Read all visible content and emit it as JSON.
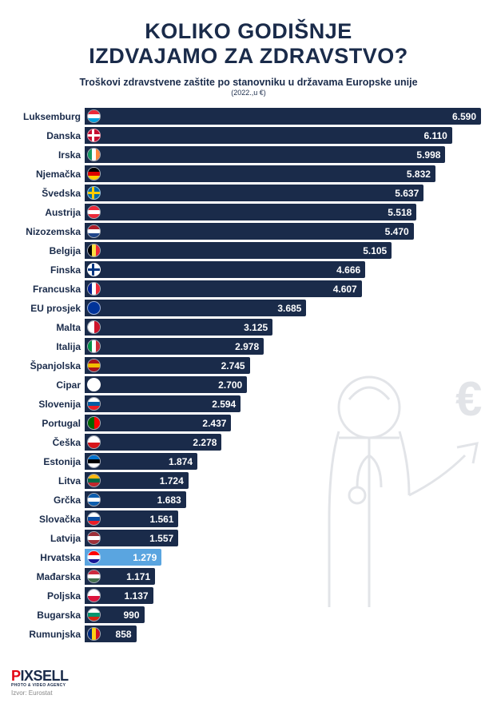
{
  "title_line1": "KOLIKO GODIŠNJE",
  "title_line2": "IZDVAJAMO ZA ZDRAVSTVO?",
  "subtitle": "Troškovi zdravstvene zaštite po stanovniku u državama Europske unije",
  "subnote": "(2022.,u €)",
  "chart": {
    "type": "bar",
    "bar_color": "#1a2b4a",
    "highlight_color": "#5aa5e0",
    "text_color": "#ffffff",
    "label_color": "#1a2b4a",
    "max_value": 6590,
    "bar_max_width_pct": 100,
    "rows": [
      {
        "label": "Luksemburg",
        "value": 6590,
        "display": "6.590",
        "flag": {
          "type": "h3",
          "c": [
            "#ed2939",
            "#ffffff",
            "#00a1de"
          ]
        }
      },
      {
        "label": "Danska",
        "value": 6110,
        "display": "6.110",
        "flag": {
          "type": "cross",
          "bg": "#c60c30",
          "cross": "#ffffff"
        }
      },
      {
        "label": "Irska",
        "value": 5998,
        "display": "5.998",
        "flag": {
          "type": "v3",
          "c": [
            "#169b62",
            "#ffffff",
            "#ff883e"
          ]
        }
      },
      {
        "label": "Njemačka",
        "value": 5832,
        "display": "5.832",
        "flag": {
          "type": "h3",
          "c": [
            "#000000",
            "#dd0000",
            "#ffce00"
          ]
        }
      },
      {
        "label": "Švedska",
        "value": 5637,
        "display": "5.637",
        "flag": {
          "type": "cross",
          "bg": "#006aa7",
          "cross": "#fecc00"
        }
      },
      {
        "label": "Austrija",
        "value": 5518,
        "display": "5.518",
        "flag": {
          "type": "h3",
          "c": [
            "#ed2939",
            "#ffffff",
            "#ed2939"
          ]
        }
      },
      {
        "label": "Nizozemska",
        "value": 5470,
        "display": "5.470",
        "flag": {
          "type": "h3",
          "c": [
            "#ae1c28",
            "#ffffff",
            "#21468b"
          ]
        }
      },
      {
        "label": "Belgija",
        "value": 5105,
        "display": "5.105",
        "flag": {
          "type": "v3",
          "c": [
            "#000000",
            "#fae042",
            "#ed2939"
          ]
        }
      },
      {
        "label": "Finska",
        "value": 4666,
        "display": "4.666",
        "flag": {
          "type": "cross",
          "bg": "#ffffff",
          "cross": "#003580"
        }
      },
      {
        "label": "Francuska",
        "value": 4607,
        "display": "4.607",
        "flag": {
          "type": "v3",
          "c": [
            "#002395",
            "#ffffff",
            "#ed2939"
          ]
        }
      },
      {
        "label": "EU prosjek",
        "value": 3685,
        "display": "3.685",
        "flag": {
          "type": "solid",
          "bg": "#003399"
        }
      },
      {
        "label": "Malta",
        "value": 3125,
        "display": "3.125",
        "flag": {
          "type": "v2",
          "c": [
            "#ffffff",
            "#cf142b"
          ]
        }
      },
      {
        "label": "Italija",
        "value": 2978,
        "display": "2.978",
        "flag": {
          "type": "v3",
          "c": [
            "#009246",
            "#ffffff",
            "#ce2b37"
          ]
        }
      },
      {
        "label": "Španjolska",
        "value": 2745,
        "display": "2.745",
        "flag": {
          "type": "h3",
          "c": [
            "#aa151b",
            "#f1bf00",
            "#aa151b"
          ]
        }
      },
      {
        "label": "Cipar",
        "value": 2700,
        "display": "2.700",
        "flag": {
          "type": "solid",
          "bg": "#ffffff"
        }
      },
      {
        "label": "Slovenija",
        "value": 2594,
        "display": "2.594",
        "flag": {
          "type": "h3",
          "c": [
            "#ffffff",
            "#005da4",
            "#ed1c24"
          ]
        }
      },
      {
        "label": "Portugal",
        "value": 2437,
        "display": "2.437",
        "flag": {
          "type": "v2",
          "c": [
            "#006600",
            "#ff0000"
          ]
        }
      },
      {
        "label": "Češka",
        "value": 2278,
        "display": "2.278",
        "flag": {
          "type": "h2",
          "c": [
            "#ffffff",
            "#d7141a"
          ]
        }
      },
      {
        "label": "Estonija",
        "value": 1874,
        "display": "1.874",
        "flag": {
          "type": "h3",
          "c": [
            "#0072ce",
            "#000000",
            "#ffffff"
          ]
        }
      },
      {
        "label": "Litva",
        "value": 1724,
        "display": "1.724",
        "flag": {
          "type": "h3",
          "c": [
            "#fdb913",
            "#006a44",
            "#c1272d"
          ]
        }
      },
      {
        "label": "Grčka",
        "value": 1683,
        "display": "1.683",
        "flag": {
          "type": "h3",
          "c": [
            "#0d5eaf",
            "#ffffff",
            "#0d5eaf"
          ]
        }
      },
      {
        "label": "Slovačka",
        "value": 1561,
        "display": "1.561",
        "flag": {
          "type": "h3",
          "c": [
            "#ffffff",
            "#0b4ea2",
            "#ee1c25"
          ]
        }
      },
      {
        "label": "Latvija",
        "value": 1557,
        "display": "1.557",
        "flag": {
          "type": "h3",
          "c": [
            "#9e3039",
            "#ffffff",
            "#9e3039"
          ]
        }
      },
      {
        "label": "Hrvatska",
        "value": 1279,
        "display": "1.279",
        "highlight": true,
        "flag": {
          "type": "h3",
          "c": [
            "#ff0000",
            "#ffffff",
            "#171796"
          ]
        }
      },
      {
        "label": "Mađarska",
        "value": 1171,
        "display": "1.171",
        "flag": {
          "type": "h3",
          "c": [
            "#cd2a3e",
            "#ffffff",
            "#436f4d"
          ]
        }
      },
      {
        "label": "Poljska",
        "value": 1137,
        "display": "1.137",
        "flag": {
          "type": "h2",
          "c": [
            "#ffffff",
            "#dc143c"
          ]
        }
      },
      {
        "label": "Bugarska",
        "value": 990,
        "display": "990",
        "flag": {
          "type": "h3",
          "c": [
            "#ffffff",
            "#00966e",
            "#d62612"
          ]
        }
      },
      {
        "label": "Rumunjska",
        "value": 858,
        "display": "858",
        "flag": {
          "type": "v3",
          "c": [
            "#002b7f",
            "#fcd116",
            "#ce1126"
          ]
        }
      }
    ]
  },
  "logo": {
    "p": "P",
    "rest": "IXSELL",
    "sub": "PHOTO & VIDEO AGENCY"
  },
  "source": "Izvor: Eurostat",
  "illustration_color": "#1a2b4a"
}
